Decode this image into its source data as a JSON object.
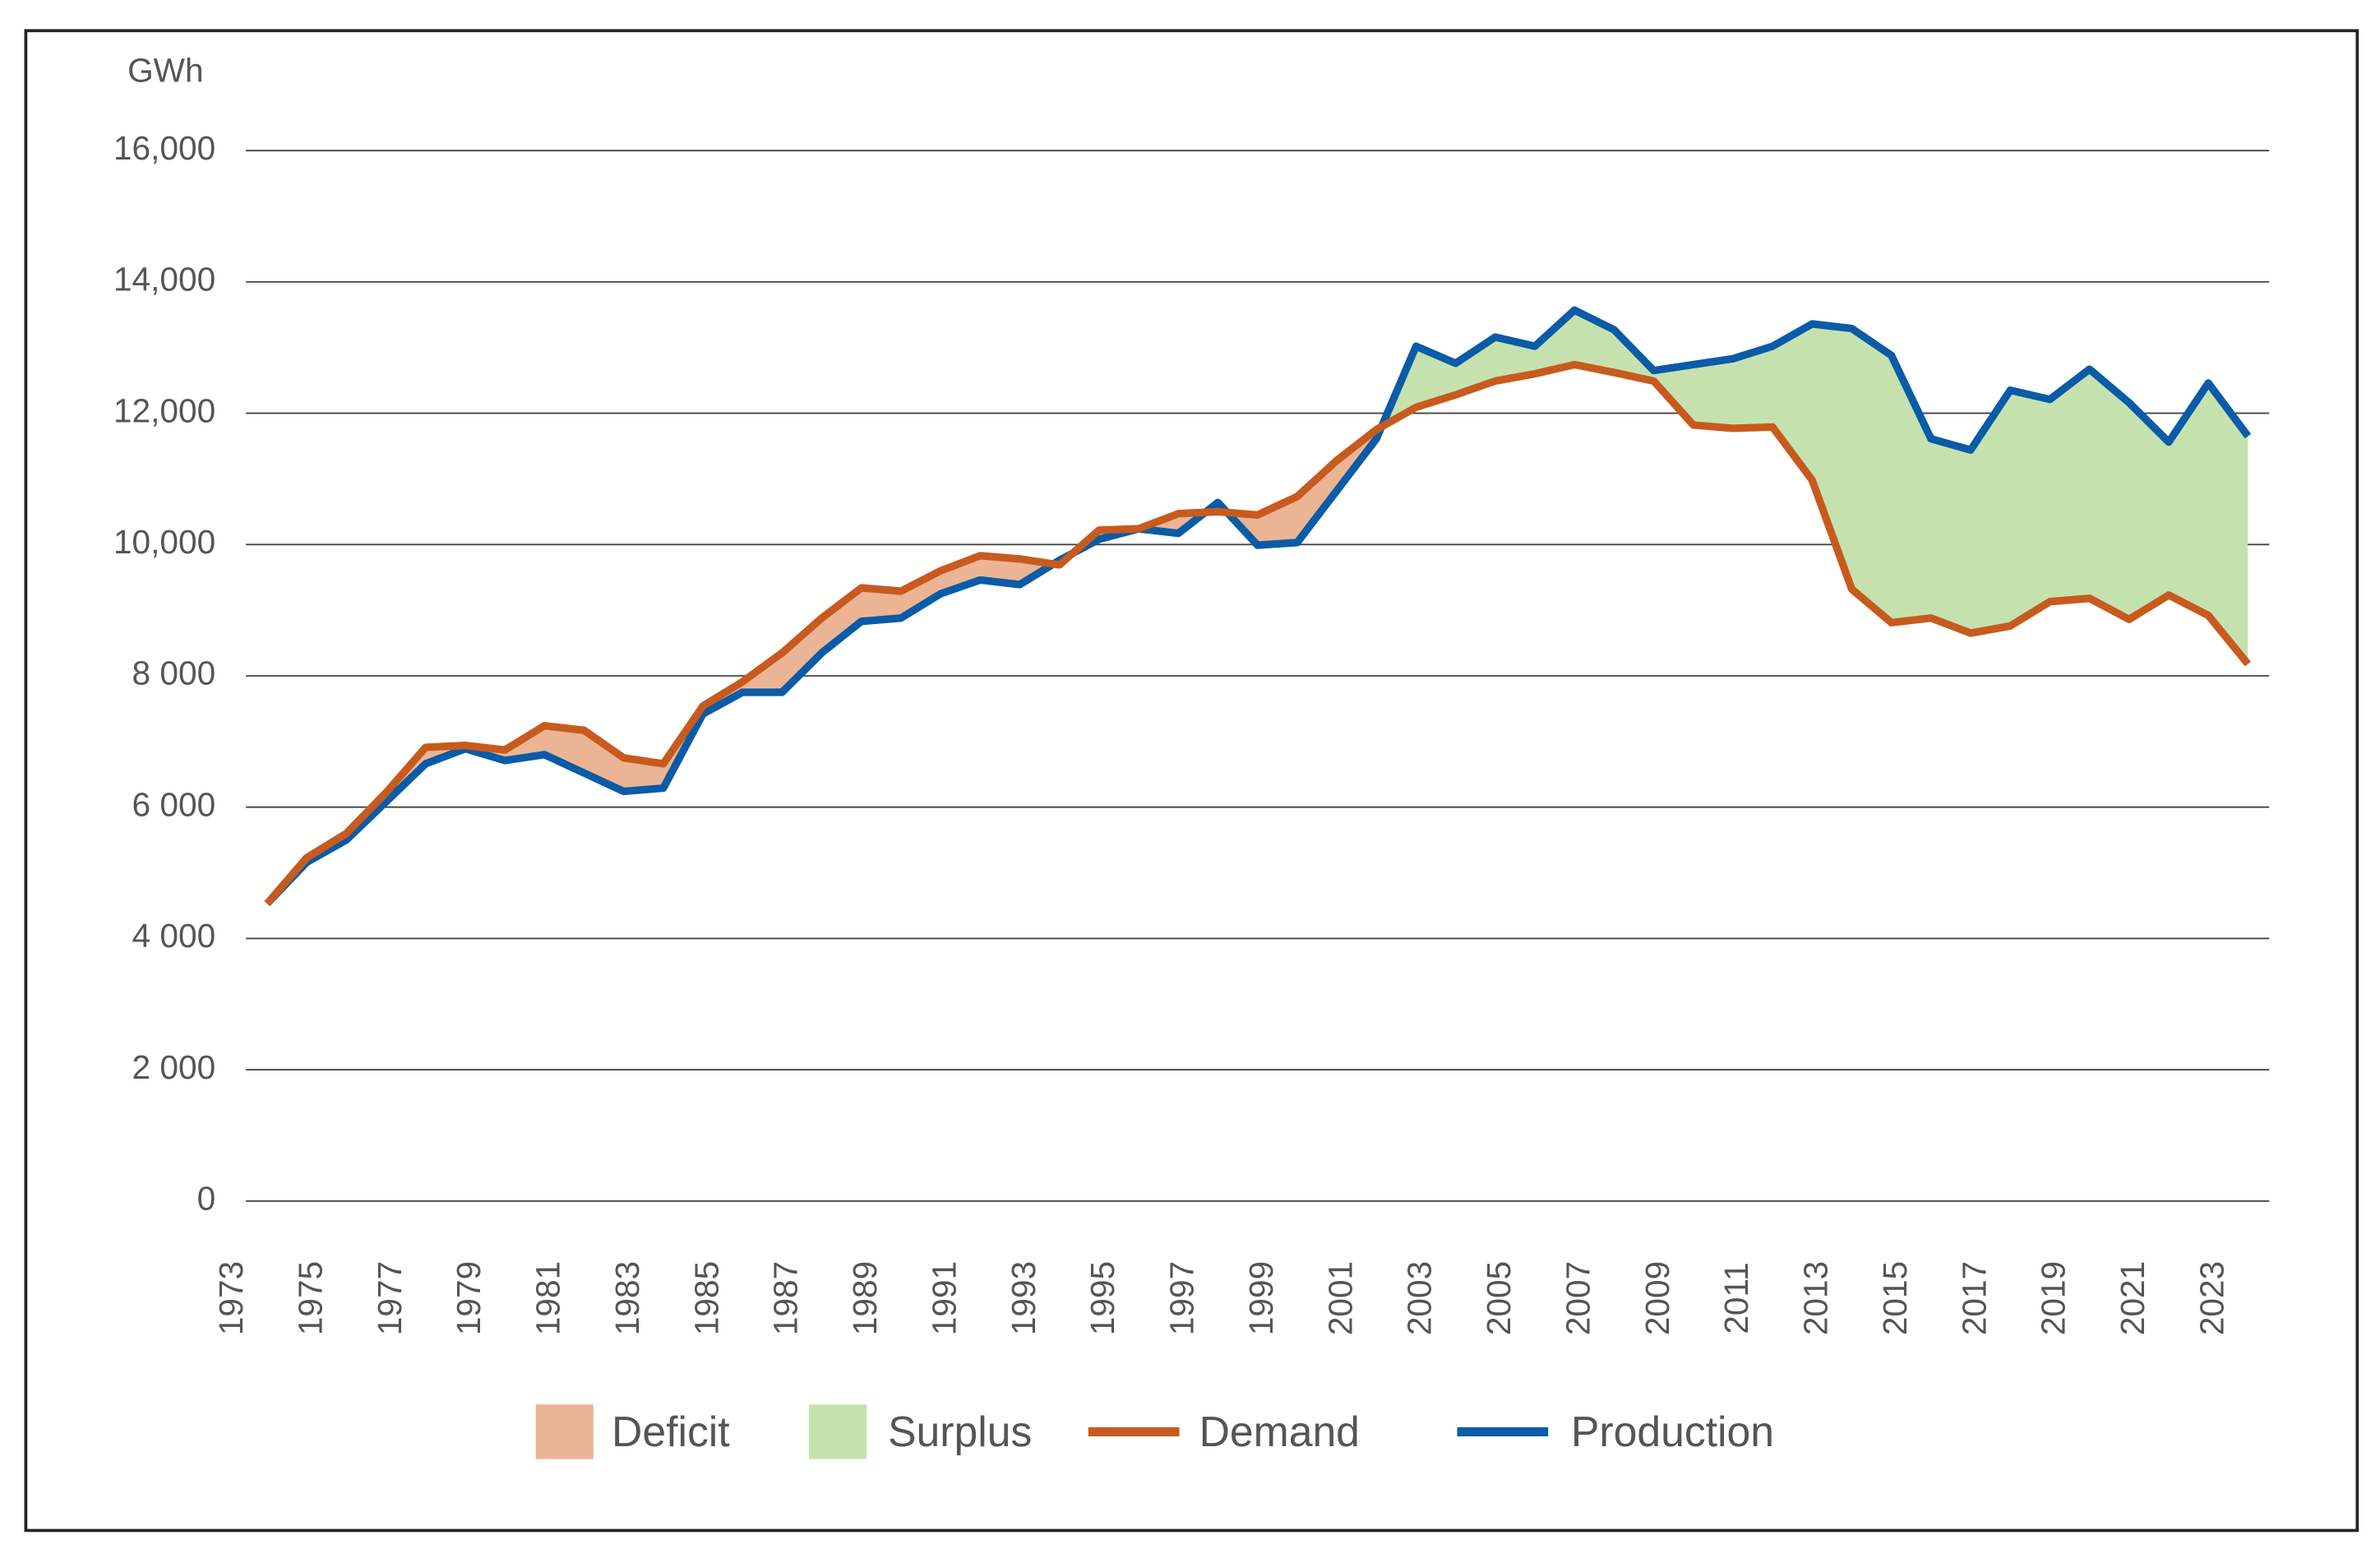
{
  "chart_data": {
    "type": "line",
    "y_unit": "GWh",
    "x": [
      1973,
      1974,
      1975,
      1976,
      1977,
      1978,
      1979,
      1980,
      1981,
      1982,
      1983,
      1984,
      1985,
      1986,
      1987,
      1988,
      1989,
      1990,
      1991,
      1992,
      1993,
      1994,
      1995,
      1996,
      1997,
      1998,
      1999,
      2000,
      2001,
      2002,
      2003,
      2004,
      2005,
      2006,
      2007,
      2008,
      2009,
      2010,
      2011,
      2012,
      2013,
      2014,
      2015,
      2016,
      2017,
      2018,
      2019,
      2020,
      2021,
      2022,
      2023
    ],
    "series": [
      {
        "name": "Demand",
        "color": "#c85a1e",
        "values": [
          4530,
          5230,
          5600,
          6220,
          6910,
          6940,
          6870,
          7240,
          7170,
          6750,
          6660,
          7540,
          7910,
          8350,
          8880,
          9340,
          9290,
          9600,
          9830,
          9780,
          9690,
          10220,
          10240,
          10470,
          10500,
          10450,
          10730,
          11280,
          11750,
          12090,
          12280,
          12490,
          12600,
          12740,
          12620,
          12490,
          11820,
          11770,
          11790,
          10980,
          9320,
          8810,
          8880,
          8650,
          8760,
          9130,
          9180,
          8860,
          9230,
          8920,
          8180
        ]
      },
      {
        "name": "Production",
        "color": "#0a5ba8",
        "values": [
          4530,
          5160,
          5500,
          6080,
          6660,
          6890,
          6710,
          6800,
          6520,
          6240,
          6290,
          7420,
          7750,
          7750,
          8350,
          8830,
          8880,
          9250,
          9460,
          9390,
          9760,
          10080,
          10240,
          10170,
          10640,
          9990,
          10030,
          10820,
          11610,
          13020,
          12760,
          13160,
          13020,
          13570,
          13270,
          12650,
          12740,
          12830,
          13020,
          13360,
          13290,
          12880,
          11610,
          11440,
          12350,
          12210,
          12670,
          12160,
          11560,
          12460,
          11650
        ]
      }
    ],
    "areas": [
      {
        "name": "Deficit",
        "color": "#ebb595"
      },
      {
        "name": "Surplus",
        "color": "#c5e2ae"
      }
    ],
    "xlim": [
      1973,
      2023
    ],
    "xticks": [
      1973,
      1975,
      1977,
      1979,
      1981,
      1983,
      1985,
      1987,
      1989,
      1991,
      1993,
      1995,
      1997,
      1999,
      2001,
      2003,
      2005,
      2007,
      2009,
      2011,
      2013,
      2015,
      2017,
      2019,
      2021,
      2023
    ],
    "ylim": [
      0,
      16000
    ],
    "yticks": [
      0,
      {
        "value": 2000,
        "label": "2 000"
      },
      {
        "value": 4000,
        "label": "4 000"
      },
      {
        "value": 6000,
        "label": "6 000"
      },
      {
        "value": 8000,
        "label": "8 000"
      },
      {
        "value": 10000,
        "label": "10,000"
      },
      {
        "value": 12000,
        "label": "12,000"
      },
      {
        "value": 14000,
        "label": "14,000"
      },
      {
        "value": 16000,
        "label": "16,000"
      }
    ],
    "grid": true
  }
}
